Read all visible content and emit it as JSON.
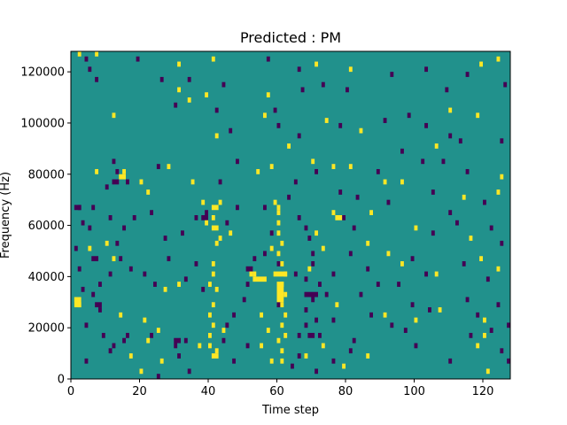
{
  "chart_data": {
    "type": "heatmap",
    "title": "Predicted : PM",
    "xlabel": "Time step",
    "ylabel": "Frequency (Hz)",
    "xlim": [
      0,
      128
    ],
    "ylim": [
      0,
      128000
    ],
    "x_ticks": [
      0,
      20,
      40,
      60,
      80,
      100,
      120
    ],
    "y_ticks": [
      0,
      20000,
      40000,
      60000,
      80000,
      100000,
      120000
    ],
    "x_tick_labels": [
      "0",
      "20",
      "40",
      "60",
      "80",
      "100",
      "120"
    ],
    "y_tick_labels": [
      "0",
      "20000",
      "40000",
      "60000",
      "80000",
      "100000",
      "120000"
    ],
    "grid": false,
    "legend": "none",
    "colors": {
      "background": "#21918c",
      "high": "#fde725",
      "low": "#440154"
    },
    "value_scale": {
      "low": 0,
      "mid": 0.5,
      "high": 1
    },
    "cell_height": 2000,
    "cells_high": [
      [
        2,
        126000
      ],
      [
        7,
        126000
      ],
      [
        31,
        122000
      ],
      [
        41,
        124000
      ],
      [
        71,
        122000
      ],
      [
        81,
        120000
      ],
      [
        119,
        122000
      ],
      [
        124,
        124000
      ],
      [
        31,
        112000
      ],
      [
        39,
        110000
      ],
      [
        34,
        108000
      ],
      [
        57,
        110000
      ],
      [
        12,
        102000
      ],
      [
        56,
        102000
      ],
      [
        74,
        100000
      ],
      [
        110,
        104000
      ],
      [
        118,
        102000
      ],
      [
        42,
        94000
      ],
      [
        63,
        90000
      ],
      [
        84,
        96000
      ],
      [
        106,
        90000
      ],
      [
        28,
        82000
      ],
      [
        7,
        80000
      ],
      [
        15,
        80000
      ],
      [
        20,
        76000
      ],
      [
        54,
        80000
      ],
      [
        70,
        84000
      ],
      [
        76,
        82000
      ],
      [
        81,
        82000
      ],
      [
        35,
        76000
      ],
      [
        58,
        82000
      ],
      [
        91,
        76000
      ],
      [
        96,
        76000
      ],
      [
        125,
        78000
      ],
      [
        22,
        72000
      ],
      [
        38,
        68000
      ],
      [
        43,
        68000
      ],
      [
        59,
        68000
      ],
      [
        60,
        66000
      ],
      [
        76,
        64000
      ],
      [
        87,
        64000
      ],
      [
        124,
        72000
      ],
      [
        41,
        62000
      ],
      [
        39,
        60000
      ],
      [
        43,
        54000
      ],
      [
        42,
        52000
      ],
      [
        46,
        56000
      ],
      [
        60,
        64000
      ],
      [
        60,
        60000
      ],
      [
        60,
        56000
      ],
      [
        61,
        52000
      ],
      [
        60,
        48000
      ],
      [
        61,
        44000
      ],
      [
        62,
        40000
      ],
      [
        58,
        50000
      ],
      [
        52,
        40000
      ],
      [
        53,
        40000
      ],
      [
        41,
        44000
      ],
      [
        41,
        40000
      ],
      [
        40,
        36000
      ],
      [
        42,
        34000
      ],
      [
        61,
        36000
      ],
      [
        62,
        32000
      ],
      [
        61,
        28000
      ],
      [
        62,
        24000
      ],
      [
        61,
        20000
      ],
      [
        62,
        16000
      ],
      [
        60,
        14000
      ],
      [
        57,
        18000
      ],
      [
        55,
        12000
      ],
      [
        61,
        10000
      ],
      [
        41,
        28000
      ],
      [
        40,
        24000
      ],
      [
        41,
        20000
      ],
      [
        40,
        16000
      ],
      [
        40,
        12000
      ],
      [
        42,
        10000
      ],
      [
        44,
        18000
      ],
      [
        37,
        12000
      ],
      [
        1,
        30000
      ],
      [
        2,
        28000
      ],
      [
        10,
        52000
      ],
      [
        12,
        46000
      ],
      [
        5,
        50000
      ],
      [
        14,
        24000
      ],
      [
        21,
        22000
      ],
      [
        25,
        18000
      ],
      [
        22,
        14000
      ],
      [
        17,
        8000
      ],
      [
        26,
        6000
      ],
      [
        20,
        2000
      ],
      [
        31,
        36000
      ],
      [
        27,
        34000
      ],
      [
        71,
        56000
      ],
      [
        73,
        50000
      ],
      [
        77,
        28000
      ],
      [
        86,
        52000
      ],
      [
        92,
        48000
      ],
      [
        96,
        44000
      ],
      [
        91,
        24000
      ],
      [
        100,
        58000
      ],
      [
        106,
        40000
      ],
      [
        107,
        26000
      ],
      [
        116,
        54000
      ],
      [
        114,
        70000
      ],
      [
        119,
        46000
      ],
      [
        124,
        42000
      ],
      [
        120,
        22000
      ],
      [
        120,
        16000
      ],
      [
        118,
        12000
      ],
      [
        121,
        2000
      ],
      [
        100,
        22000
      ],
      [
        86,
        8000
      ],
      [
        61,
        6000
      ],
      [
        68,
        8000
      ],
      [
        69,
        42000
      ],
      [
        55,
        24000
      ],
      [
        58,
        6000
      ],
      [
        73,
        12000
      ],
      [
        79,
        4000
      ]
    ],
    "cells_low": [
      [
        4,
        124000
      ],
      [
        5,
        120000
      ],
      [
        7,
        116000
      ],
      [
        19,
        124000
      ],
      [
        26,
        116000
      ],
      [
        34,
        116000
      ],
      [
        44,
        114000
      ],
      [
        57,
        124000
      ],
      [
        66,
        120000
      ],
      [
        67,
        112000
      ],
      [
        73,
        114000
      ],
      [
        80,
        112000
      ],
      [
        93,
        118000
      ],
      [
        103,
        120000
      ],
      [
        109,
        112000
      ],
      [
        115,
        118000
      ],
      [
        126,
        114000
      ],
      [
        30,
        106000
      ],
      [
        42,
        104000
      ],
      [
        46,
        96000
      ],
      [
        59,
        104000
      ],
      [
        60,
        98000
      ],
      [
        66,
        94000
      ],
      [
        78,
        98000
      ],
      [
        91,
        100000
      ],
      [
        98,
        102000
      ],
      [
        103,
        98000
      ],
      [
        110,
        94000
      ],
      [
        113,
        92000
      ],
      [
        125,
        92000
      ],
      [
        96,
        88000
      ],
      [
        108,
        84000
      ],
      [
        12,
        84000
      ],
      [
        13,
        80000
      ],
      [
        10,
        74000
      ],
      [
        16,
        76000
      ],
      [
        25,
        82000
      ],
      [
        43,
        76000
      ],
      [
        48,
        84000
      ],
      [
        65,
        76000
      ],
      [
        71,
        80000
      ],
      [
        78,
        72000
      ],
      [
        89,
        80000
      ],
      [
        102,
        84000
      ],
      [
        115,
        80000
      ],
      [
        2,
        66000
      ],
      [
        3,
        60000
      ],
      [
        5,
        58000
      ],
      [
        6,
        66000
      ],
      [
        11,
        62000
      ],
      [
        15,
        58000
      ],
      [
        18,
        62000
      ],
      [
        23,
        64000
      ],
      [
        27,
        54000
      ],
      [
        32,
        56000
      ],
      [
        36,
        62000
      ],
      [
        39,
        64000
      ],
      [
        45,
        60000
      ],
      [
        48,
        66000
      ],
      [
        56,
        66000
      ],
      [
        63,
        70000
      ],
      [
        66,
        62000
      ],
      [
        68,
        58000
      ],
      [
        69,
        54000
      ],
      [
        70,
        48000
      ],
      [
        70,
        44000
      ],
      [
        72,
        36000
      ],
      [
        76,
        40000
      ],
      [
        74,
        32000
      ],
      [
        70,
        30000
      ],
      [
        68,
        26000
      ],
      [
        71,
        22000
      ],
      [
        68,
        20000
      ],
      [
        66,
        16000
      ],
      [
        65,
        40000
      ],
      [
        68,
        38000
      ],
      [
        58,
        56000
      ],
      [
        56,
        48000
      ],
      [
        53,
        46000
      ],
      [
        51,
        36000
      ],
      [
        50,
        30000
      ],
      [
        47,
        24000
      ],
      [
        45,
        20000
      ],
      [
        44,
        14000
      ],
      [
        30,
        12000
      ],
      [
        23,
        16000
      ],
      [
        15,
        14000
      ],
      [
        11,
        10000
      ],
      [
        9,
        16000
      ],
      [
        4,
        20000
      ],
      [
        6,
        32000
      ],
      [
        8,
        36000
      ],
      [
        11,
        40000
      ],
      [
        13,
        52000
      ],
      [
        14,
        46000
      ],
      [
        17,
        42000
      ],
      [
        21,
        40000
      ],
      [
        24,
        36000
      ],
      [
        28,
        46000
      ],
      [
        33,
        38000
      ],
      [
        36,
        44000
      ],
      [
        38,
        34000
      ],
      [
        1,
        50000
      ],
      [
        2,
        42000
      ],
      [
        3,
        34000
      ],
      [
        8,
        26000
      ],
      [
        4,
        6000
      ],
      [
        12,
        12000
      ],
      [
        16,
        16000
      ],
      [
        25,
        0
      ],
      [
        31,
        8000
      ],
      [
        33,
        14000
      ],
      [
        34,
        2000
      ],
      [
        47,
        6000
      ],
      [
        51,
        12000
      ],
      [
        60,
        28000
      ],
      [
        64,
        4000
      ],
      [
        66,
        8000
      ],
      [
        71,
        2000
      ],
      [
        76,
        6000
      ],
      [
        82,
        14000
      ],
      [
        84,
        32000
      ],
      [
        87,
        24000
      ],
      [
        93,
        20000
      ],
      [
        97,
        18000
      ],
      [
        95,
        36000
      ],
      [
        99,
        46000
      ],
      [
        103,
        40000
      ],
      [
        105,
        56000
      ],
      [
        112,
        60000
      ],
      [
        114,
        44000
      ],
      [
        115,
        30000
      ],
      [
        118,
        24000
      ],
      [
        122,
        18000
      ],
      [
        125,
        10000
      ],
      [
        110,
        6000
      ],
      [
        100,
        12000
      ],
      [
        92,
        68000
      ],
      [
        82,
        58000
      ],
      [
        81,
        48000
      ],
      [
        86,
        42000
      ],
      [
        79,
        62000
      ],
      [
        83,
        70000
      ],
      [
        105,
        72000
      ],
      [
        110,
        64000
      ],
      [
        120,
        68000
      ],
      [
        122,
        58000
      ],
      [
        125,
        52000
      ],
      [
        121,
        38000
      ],
      [
        124,
        28000
      ],
      [
        127,
        20000
      ],
      [
        127,
        6000
      ],
      [
        116,
        16000
      ],
      [
        104,
        26000
      ],
      [
        99,
        28000
      ],
      [
        89,
        36000
      ],
      [
        81,
        10000
      ],
      [
        76,
        22000
      ],
      [
        72,
        16000
      ],
      [
        60,
        44000
      ]
    ],
    "cells_low_blocks": [
      [
        12,
        76000,
        2,
        2
      ],
      [
        1,
        66000,
        2,
        2
      ],
      [
        6,
        46000,
        2,
        2
      ],
      [
        38,
        62000,
        2,
        2
      ],
      [
        51,
        42000,
        2,
        2
      ],
      [
        68,
        32000,
        4,
        2
      ],
      [
        69,
        16000,
        2,
        2
      ],
      [
        30,
        14000,
        2,
        2
      ],
      [
        7,
        28000,
        2,
        2
      ]
    ],
    "cells_high_blocks": [
      [
        14,
        78000,
        2,
        2
      ],
      [
        41,
        66000,
        2,
        2
      ],
      [
        41,
        58000,
        2,
        2
      ],
      [
        59,
        40000,
        4,
        2
      ],
      [
        53,
        38000,
        4,
        2
      ],
      [
        60,
        30000,
        2,
        8
      ],
      [
        1,
        28000,
        2,
        4
      ],
      [
        77,
        62000,
        2,
        2
      ],
      [
        41,
        8000,
        2,
        2
      ]
    ]
  }
}
